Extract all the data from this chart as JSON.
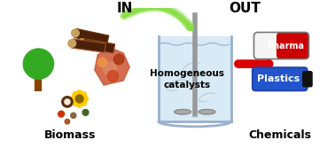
{
  "background_color": "#ffffff",
  "reactor_text": "Homogeneous\ncatalysts",
  "in_label": "IN",
  "out_label": "OUT",
  "biomass_label": "Biomass",
  "chemicals_label": "Chemicals",
  "pharma_label": "Pharma",
  "plastics_label": "Plastics",
  "arrow_green_color": "#88dd44",
  "arrow_green_fill": "#aade66",
  "arrow_red_color": "#dd0000",
  "pharma_red": "#cc0000",
  "pharma_white": "#f5f5f5",
  "plastics_blue": "#2255cc",
  "cap_color": "#111111",
  "reactor_fill": "#d8eaf5",
  "reactor_edge": "#9ab0cc",
  "stirrer_color": "#aaaaaa",
  "shaft_color": "#999999",
  "tree_green": "#33aa22",
  "tree_brown": "#884400",
  "log_colors": [
    "#6B3410",
    "#8B4513",
    "#A0522D"
  ],
  "figsize": [
    3.78,
    1.67
  ],
  "dpi": 100
}
